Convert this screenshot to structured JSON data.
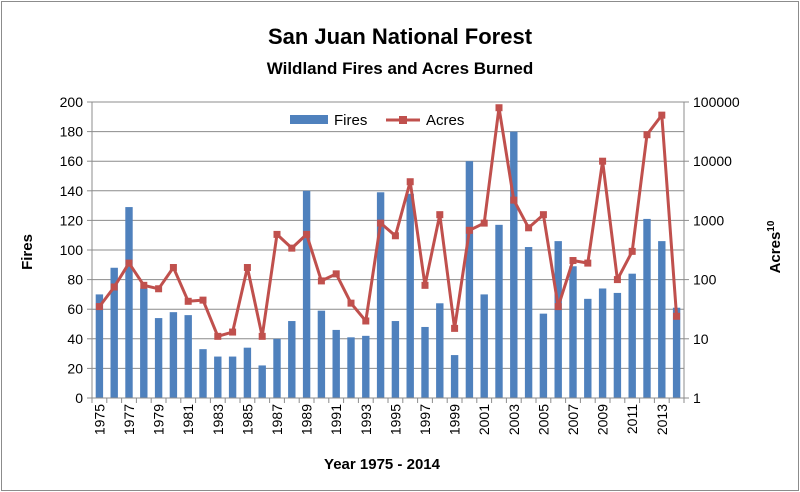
{
  "chart_data": {
    "type": "bar+line",
    "title": "San Juan National Forest",
    "subtitle": "Wildland Fires and Acres Burned",
    "xlabel": "Year 1975 - 2014",
    "ylabel_left": "Fires",
    "ylabel_right_base": "Acres",
    "ylabel_right_superscript": "10",
    "ylim_left": [
      0,
      200
    ],
    "yticks_left": [
      0,
      20,
      40,
      60,
      80,
      100,
      120,
      140,
      160,
      180,
      200
    ],
    "ylim_right": [
      1,
      100000
    ],
    "yticks_right": [
      1,
      10,
      100,
      1000,
      10000,
      100000
    ],
    "right_axis_scale": "log",
    "grid": true,
    "legend_position": "top",
    "categories": [
      1975,
      1976,
      1977,
      1978,
      1979,
      1980,
      1981,
      1982,
      1983,
      1984,
      1985,
      1986,
      1987,
      1988,
      1989,
      1990,
      1991,
      1992,
      1993,
      1994,
      1995,
      1996,
      1997,
      1998,
      1999,
      2000,
      2001,
      2002,
      2003,
      2004,
      2005,
      2006,
      2007,
      2008,
      2009,
      2010,
      2011,
      2012,
      2013,
      2014
    ],
    "xtick_labels": [
      "1975",
      "1977",
      "1979",
      "1981",
      "1983",
      "1985",
      "1987",
      "1989",
      "1991",
      "1993",
      "1995",
      "1997",
      "1999",
      "2001",
      "2003",
      "2005",
      "2007",
      "2009",
      "2011",
      "2013"
    ],
    "series": [
      {
        "name": "Fires",
        "type": "bar",
        "axis": "left",
        "color": "#4f81bd",
        "values": [
          70,
          88,
          129,
          74,
          54,
          58,
          56,
          33,
          28,
          28,
          34,
          22,
          40,
          52,
          140,
          59,
          46,
          41,
          42,
          139,
          52,
          138,
          48,
          64,
          29,
          160,
          70,
          117,
          180,
          102,
          57,
          106,
          89,
          67,
          74,
          71,
          84,
          121,
          106,
          61
        ]
      },
      {
        "name": "Acres",
        "type": "line",
        "axis": "right",
        "color": "#c0504d",
        "values": [
          35,
          75,
          190,
          80,
          70,
          160,
          43,
          45,
          11,
          13,
          160,
          11,
          580,
          340,
          580,
          95,
          125,
          40,
          20,
          900,
          550,
          4500,
          80,
          1250,
          15,
          680,
          900,
          80000,
          2200,
          750,
          1250,
          35,
          210,
          190,
          10000,
          100,
          300,
          28000,
          60000,
          24
        ]
      }
    ]
  }
}
